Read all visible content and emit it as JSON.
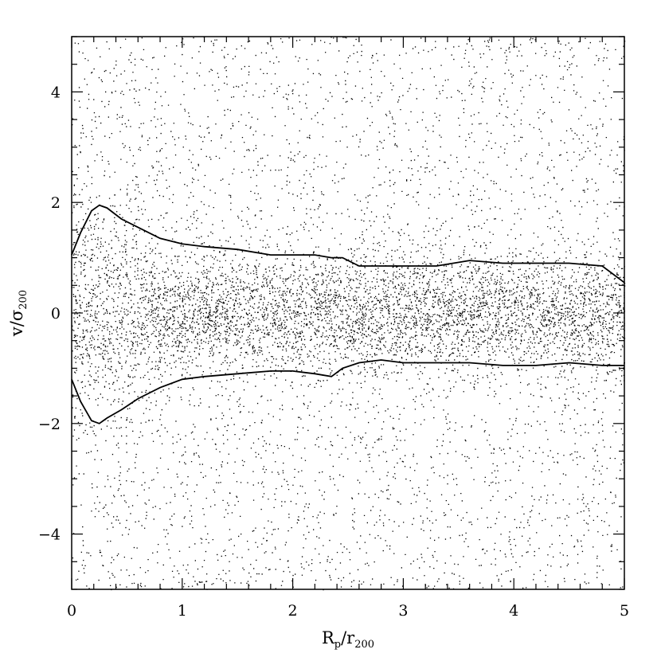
{
  "chart_data": {
    "type": "scatter",
    "title": "",
    "xlabel": {
      "main": "R",
      "main_sub": "p",
      "sep": "/",
      "denom": "r",
      "denom_sub": "200"
    },
    "ylabel": {
      "main": "v",
      "sep": "/",
      "denom": "σ",
      "denom_sub": "200"
    },
    "xlim": [
      0,
      5
    ],
    "ylim": [
      -5,
      5
    ],
    "x_ticks": [
      "0",
      "1",
      "2",
      "3",
      "4",
      "5"
    ],
    "y_ticks": [
      "−4",
      "−2",
      "0",
      "2",
      "4"
    ],
    "grid": false,
    "legend": "none",
    "point_color": "#000000",
    "series": [
      {
        "kind": "points",
        "description_of_density": "dense near v=0, thinning toward |v|=5",
        "count": 9000
      },
      {
        "kind": "line",
        "role": "upper caustic",
        "x": [
          0.0,
          0.08,
          0.18,
          0.25,
          0.32,
          0.45,
          0.6,
          0.8,
          1.0,
          1.2,
          1.5,
          1.8,
          2.0,
          2.2,
          2.35,
          2.45,
          2.6,
          2.8,
          3.0,
          3.3,
          3.6,
          3.9,
          4.2,
          4.5,
          4.8,
          5.0
        ],
        "y": [
          1.05,
          1.45,
          1.85,
          1.95,
          1.9,
          1.7,
          1.55,
          1.35,
          1.25,
          1.2,
          1.15,
          1.05,
          1.05,
          1.05,
          1.0,
          1.0,
          0.85,
          0.85,
          0.85,
          0.85,
          0.95,
          0.9,
          0.9,
          0.9,
          0.85,
          0.55
        ]
      },
      {
        "kind": "line",
        "role": "lower caustic",
        "x": [
          0.0,
          0.08,
          0.18,
          0.25,
          0.32,
          0.45,
          0.6,
          0.8,
          1.0,
          1.2,
          1.5,
          1.8,
          2.0,
          2.2,
          2.35,
          2.45,
          2.6,
          2.8,
          3.0,
          3.3,
          3.6,
          3.9,
          4.2,
          4.5,
          4.8,
          5.0
        ],
        "y": [
          -1.2,
          -1.6,
          -1.95,
          -2.0,
          -1.9,
          -1.75,
          -1.55,
          -1.35,
          -1.2,
          -1.15,
          -1.1,
          -1.05,
          -1.05,
          -1.1,
          -1.15,
          -1.0,
          -0.9,
          -0.85,
          -0.9,
          -0.9,
          -0.9,
          -0.95,
          -0.95,
          -0.9,
          -0.95,
          -0.95
        ]
      }
    ]
  }
}
